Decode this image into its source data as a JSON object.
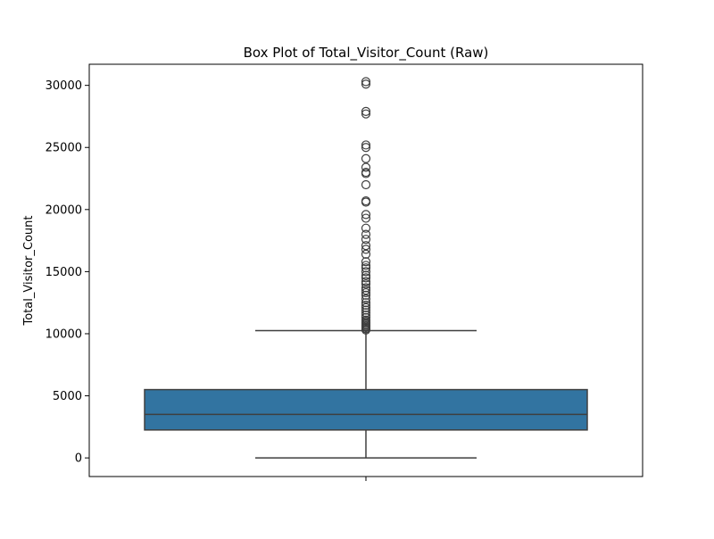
{
  "chart_data": {
    "type": "box",
    "title": "Box Plot of Total_Visitor_Count (Raw)",
    "xlabel": "",
    "ylabel": "Total_Visitor_Count",
    "ylim": [
      -1500,
      31700
    ],
    "yticks": [
      0,
      5000,
      10000,
      15000,
      20000,
      25000,
      30000
    ],
    "ytick_labels": [
      "0",
      "5000",
      "10000",
      "15000",
      "20000",
      "25000",
      "30000"
    ],
    "xticks": [
      ""
    ],
    "grid": false,
    "box": {
      "whisker_low": 0,
      "q1": 2250,
      "median": 3500,
      "q3": 5500,
      "whisker_high": 10250,
      "fill_color": "#3274a1",
      "line_color": "#3f3f3f"
    },
    "outliers": [
      10300,
      10400,
      10500,
      10600,
      10700,
      10800,
      10900,
      11000,
      11100,
      11300,
      11500,
      11700,
      11900,
      12100,
      12300,
      12500,
      12800,
      13100,
      13300,
      13500,
      13700,
      14000,
      14200,
      14500,
      14700,
      15000,
      15300,
      15500,
      15800,
      16400,
      16800,
      17100,
      17600,
      18000,
      18500,
      19300,
      19600,
      20600,
      20700,
      22000,
      22900,
      23000,
      23400,
      24100,
      25000,
      25200,
      27700,
      27900,
      30100,
      30300
    ]
  }
}
